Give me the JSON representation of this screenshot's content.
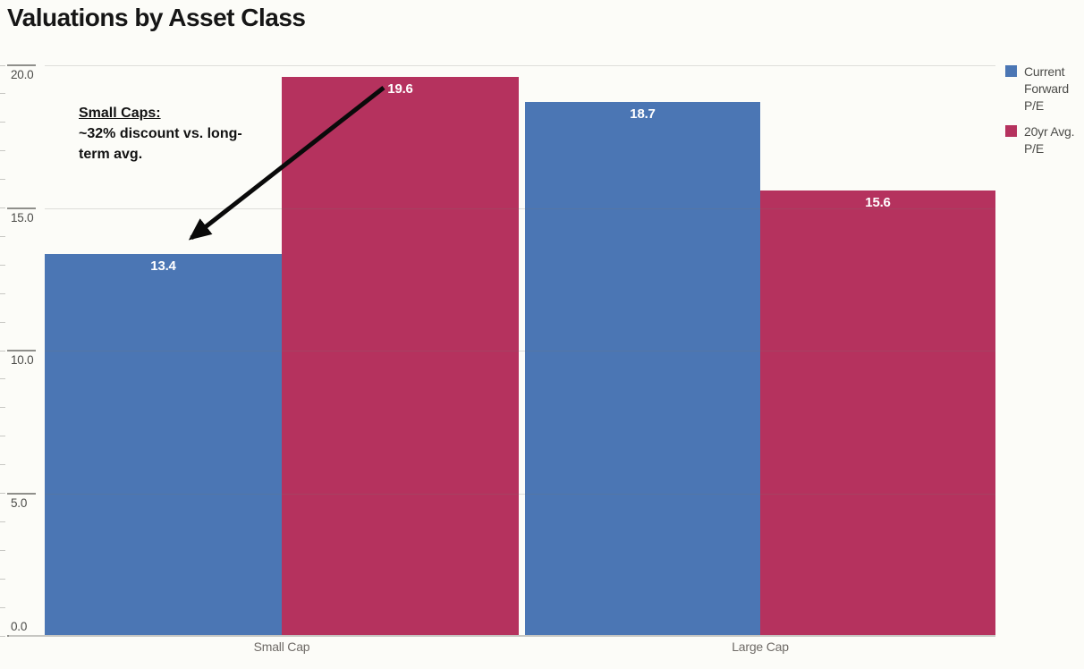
{
  "title": "Valuations by Asset Class",
  "colors": {
    "blue": "#4b76b4",
    "red": "#b5325e",
    "background": "#fcfcf8"
  },
  "chart_data": {
    "type": "bar",
    "categories": [
      "Small Cap",
      "Large Cap"
    ],
    "series": [
      {
        "name": "Current Forward P/E",
        "color_key": "blue",
        "values": [
          13.4,
          18.7
        ]
      },
      {
        "name": "20yr Avg. P/E",
        "color_key": "red",
        "values": [
          19.6,
          15.6
        ]
      }
    ],
    "ylim": [
      0,
      20
    ],
    "y_major_step": 5,
    "y_minor_step": 1,
    "y_tick_labels": [
      "0.0",
      "5.0",
      "10.0",
      "15.0",
      "20.0"
    ],
    "grid": true,
    "legend_position": "top-right",
    "value_label_format": "one-decimal"
  },
  "legend": {
    "items": [
      {
        "label": "Current Forward P/E",
        "color_key": "blue"
      },
      {
        "label": "20yr Avg. P/E",
        "color_key": "red"
      }
    ]
  },
  "annotation": {
    "heading": "Small Caps:",
    "body": "~32% discount vs. long-term avg."
  }
}
